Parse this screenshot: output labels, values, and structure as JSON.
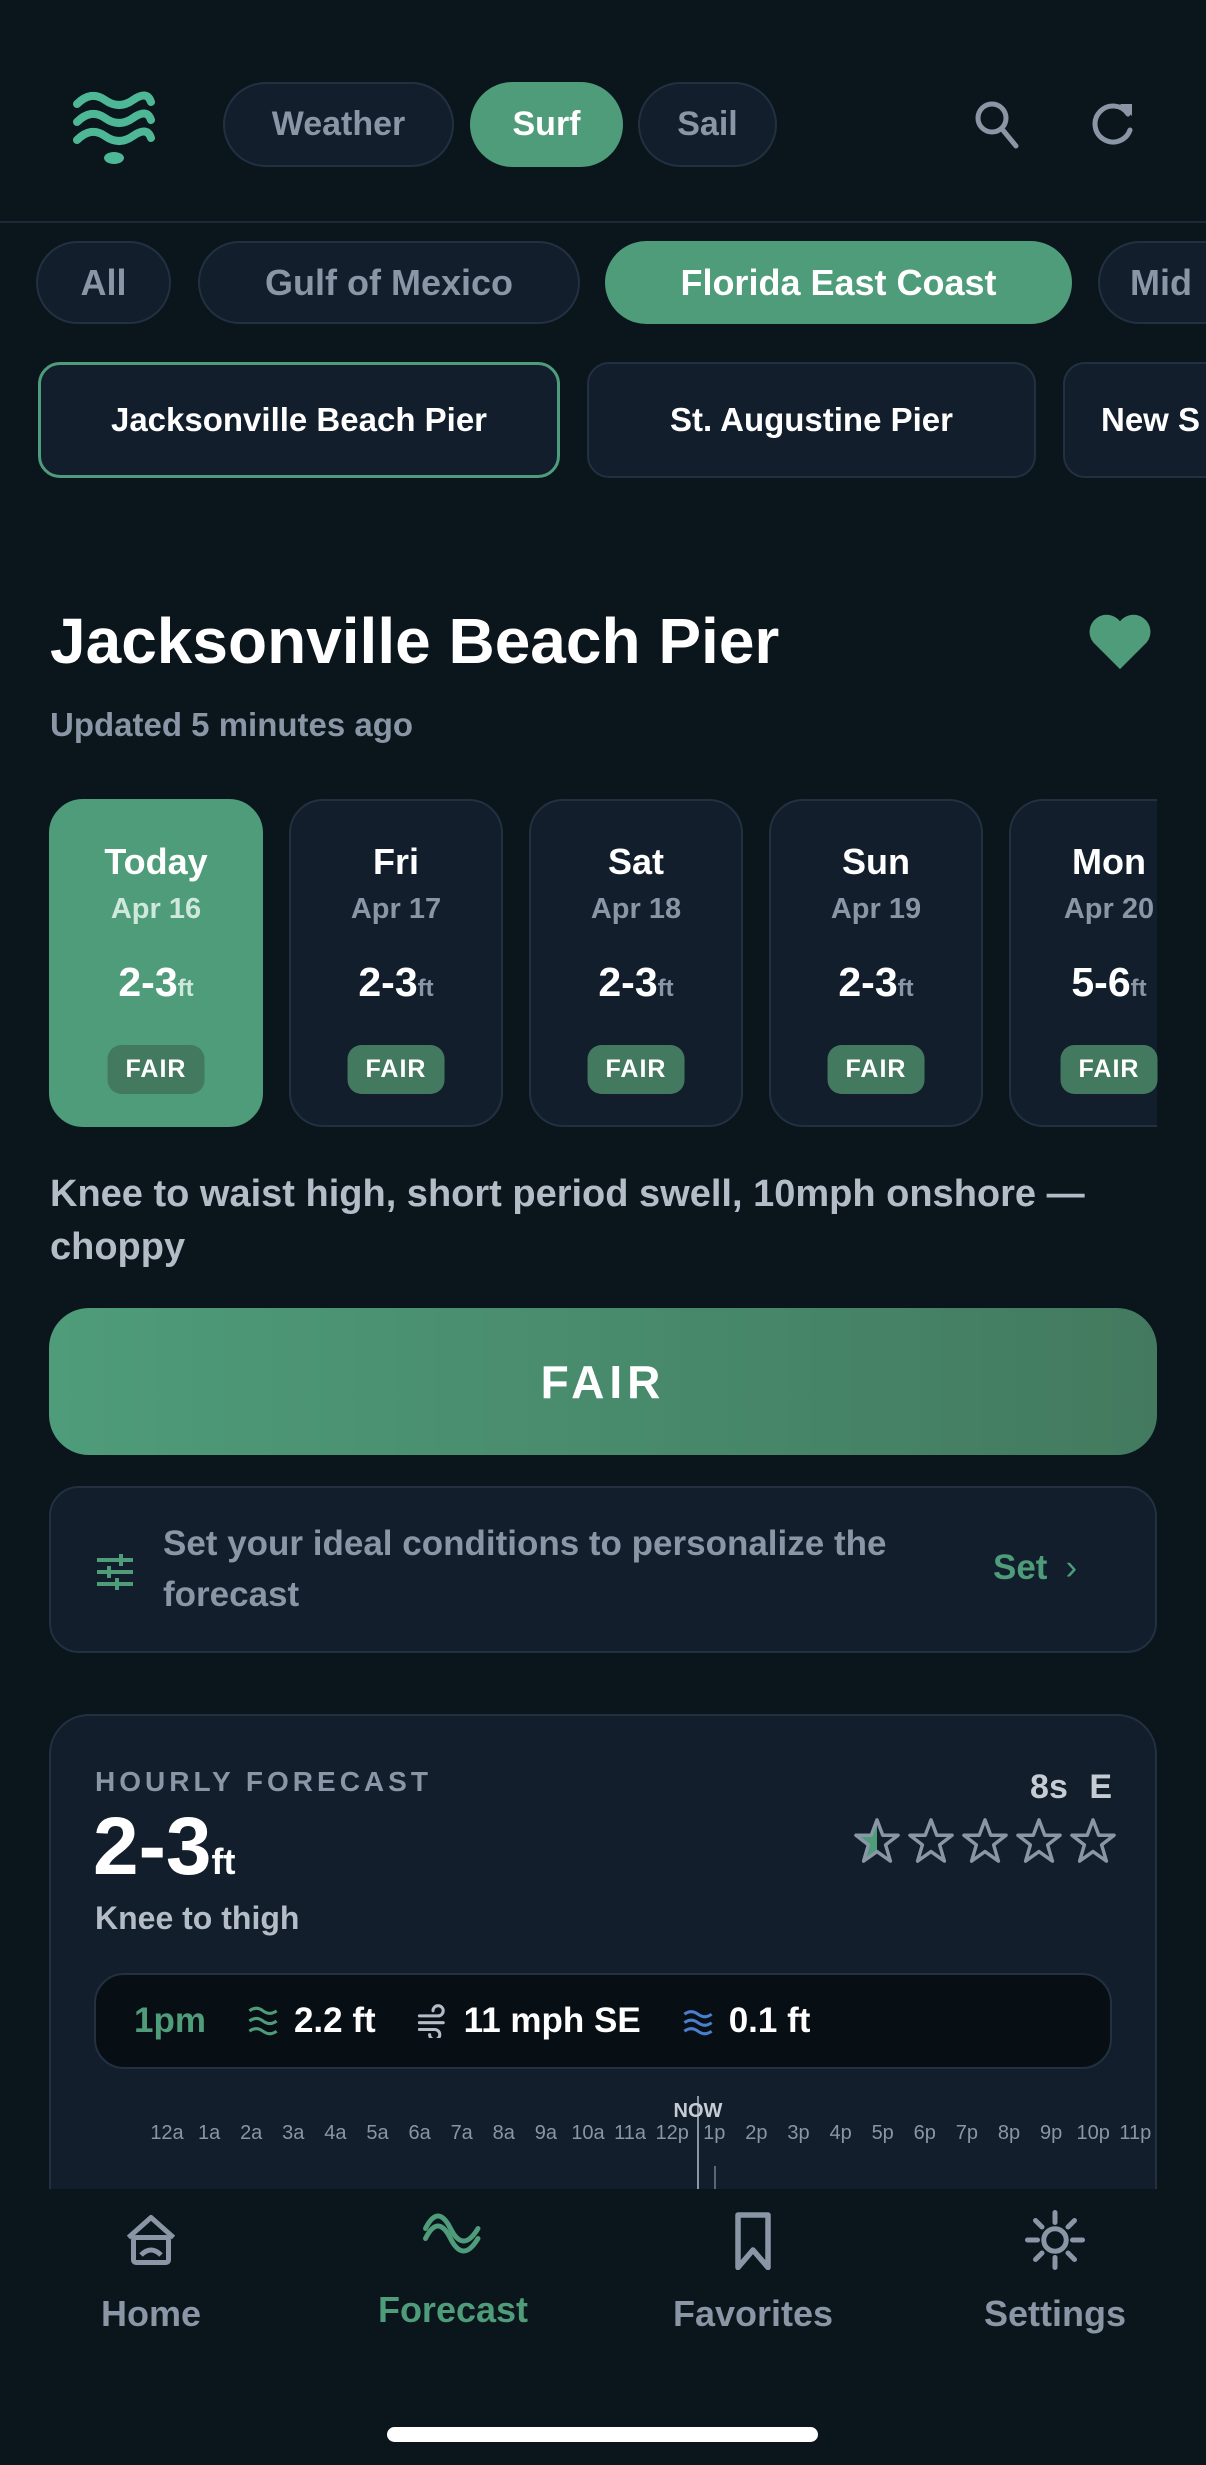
{
  "header": {
    "logo_icon": "waves-logo-icon",
    "modes": [
      {
        "label": "Weather",
        "active": false
      },
      {
        "label": "Surf",
        "active": true
      },
      {
        "label": "Sail",
        "active": false
      }
    ],
    "search_icon": "search-icon",
    "refresh_icon": "refresh-icon"
  },
  "regions": [
    {
      "label": "All"
    },
    {
      "label": "Gulf of Mexico"
    },
    {
      "label": "Florida East Coast",
      "active": true
    },
    {
      "label": "Mid"
    }
  ],
  "spots": [
    {
      "label": "Jacksonville Beach Pier",
      "active": true
    },
    {
      "label": "St. Augustine Pier"
    },
    {
      "label": "New S"
    }
  ],
  "spot": {
    "title": "Jacksonville Beach Pier",
    "updated": "Updated 5 minutes ago",
    "favorite_icon": "heart-icon"
  },
  "days": [
    {
      "name": "Today",
      "date": "Apr 16",
      "height": "2-3",
      "unit": "ft",
      "rating": "FAIR",
      "active": true
    },
    {
      "name": "Fri",
      "date": "Apr 17",
      "height": "2-3",
      "unit": "ft",
      "rating": "FAIR"
    },
    {
      "name": "Sat",
      "date": "Apr 18",
      "height": "2-3",
      "unit": "ft",
      "rating": "FAIR"
    },
    {
      "name": "Sun",
      "date": "Apr 19",
      "height": "2-3",
      "unit": "ft",
      "rating": "FAIR"
    },
    {
      "name": "Mon",
      "date": "Apr 20",
      "height": "5-6",
      "unit": "ft",
      "rating": "FAIR"
    }
  ],
  "summary": "Knee to waist high, short period swell, 10mph onshore — choppy",
  "rating_bar": "FAIR",
  "preferences": {
    "text": "Set your ideal conditions to personalize the forecast",
    "action": "Set"
  },
  "hourly": {
    "heading": "HOURLY FORECAST",
    "height": "2-3",
    "unit": "ft",
    "description": "Knee to thigh",
    "period": "8s",
    "direction": "E",
    "stars_rating": 0.5,
    "stars_max": 5,
    "current": {
      "time": "1pm",
      "swell": "2.2 ft",
      "wind": "11 mph SE",
      "tide": "0.1 ft"
    },
    "now_label": "NOW",
    "hours": [
      "12a",
      "1a",
      "2a",
      "3a",
      "4a",
      "5a",
      "6a",
      "7a",
      "8a",
      "9a",
      "10a",
      "11a",
      "12p",
      "1p",
      "2p",
      "3p",
      "4p",
      "5p",
      "6p",
      "7p",
      "8p",
      "9p",
      "10p",
      "11p"
    ]
  },
  "tabs": [
    {
      "label": "Home",
      "icon": "home-icon"
    },
    {
      "label": "Forecast",
      "icon": "wave-icon",
      "active": true
    },
    {
      "label": "Favorites",
      "icon": "bookmark-icon"
    },
    {
      "label": "Settings",
      "icon": "sun-icon"
    }
  ],
  "colors": {
    "accent": "#4e9c7a",
    "background": "#0b151c",
    "card": "#121e2b",
    "tide": "#4a7fd0"
  }
}
